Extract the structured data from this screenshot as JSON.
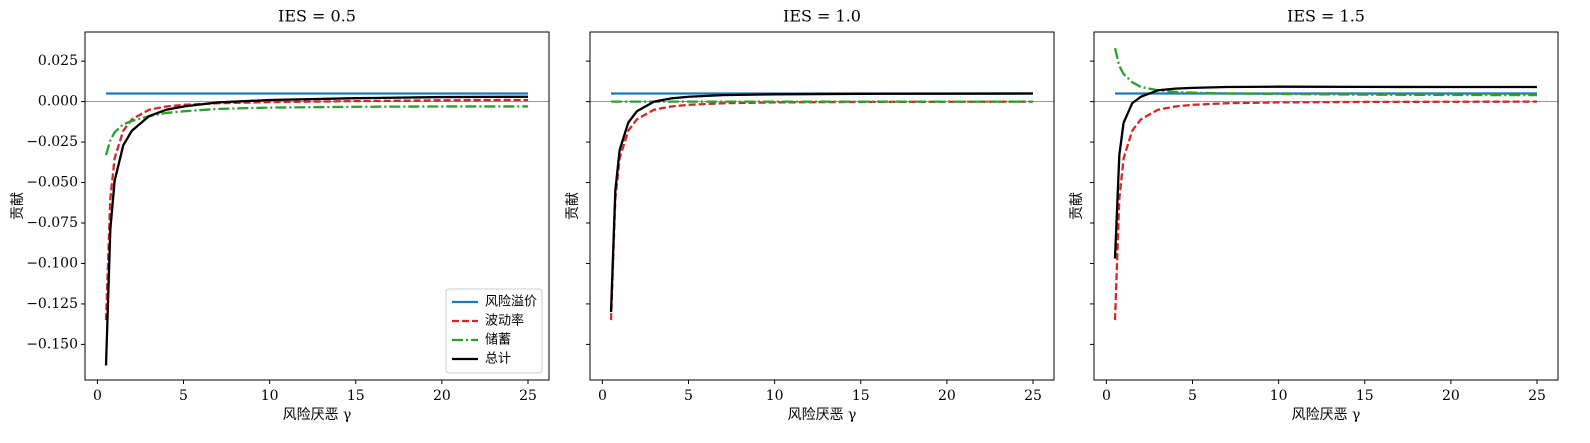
{
  "chart_data": [
    {
      "type": "line",
      "title": "IES = 0.5",
      "xlabel": "风险厌恶 γ",
      "ylabel": "贡献",
      "x": [
        0.5,
        0.75,
        1,
        1.5,
        2,
        3,
        4,
        5,
        7,
        10,
        15,
        20,
        25
      ],
      "series": [
        {
          "name": "风险溢价",
          "color": "#1f77b4",
          "dash": "solid",
          "values": [
            0.005,
            0.005,
            0.005,
            0.005,
            0.005,
            0.005,
            0.005,
            0.005,
            0.005,
            0.005,
            0.005,
            0.005,
            0.005
          ]
        },
        {
          "name": "波动率",
          "color": "#d62728",
          "dash": "dashed",
          "values": [
            -0.135,
            -0.06,
            -0.035,
            -0.018,
            -0.011,
            -0.005,
            -0.003,
            -0.002,
            -0.001,
            -0.0003,
            0.0003,
            0.0008,
            0.001
          ]
        },
        {
          "name": "储蓄",
          "color": "#2ca02c",
          "dash": "dashdot",
          "values": [
            -0.033,
            -0.024,
            -0.019,
            -0.014,
            -0.012,
            -0.009,
            -0.007,
            -0.006,
            -0.0045,
            -0.0037,
            -0.0032,
            -0.003,
            -0.003
          ]
        },
        {
          "name": "总计",
          "color": "#000000",
          "dash": "solid",
          "values": [
            -0.163,
            -0.079,
            -0.049,
            -0.027,
            -0.018,
            -0.009,
            -0.005,
            -0.003,
            -0.0005,
            0.001,
            0.0021,
            0.0028,
            0.003
          ]
        }
      ],
      "xlim": [
        -0.72,
        26.22
      ],
      "xticks": [
        0,
        5,
        10,
        15,
        20,
        25
      ],
      "ylim": [
        -0.172,
        0.043
      ],
      "yticks": [
        {
          "value": -0.15,
          "label": "−0.150"
        },
        {
          "value": -0.125,
          "label": "−0.125"
        },
        {
          "value": -0.1,
          "label": "−0.100"
        },
        {
          "value": -0.075,
          "label": "−0.075"
        },
        {
          "value": -0.05,
          "label": "−0.050"
        },
        {
          "value": -0.025,
          "label": "−0.025"
        },
        {
          "value": 0,
          "label": "0.000"
        },
        {
          "value": 0.025,
          "label": "0.025"
        }
      ],
      "hline": 0,
      "legend": "lower right"
    },
    {
      "type": "line",
      "title": "IES = 1.0",
      "xlabel": "风险厌恶 γ",
      "ylabel": "贡献",
      "x": [
        0.5,
        0.75,
        1,
        1.5,
        2,
        3,
        4,
        5,
        7,
        10,
        15,
        20,
        25
      ],
      "series": [
        {
          "name": "风险溢价",
          "color": "#1f77b4",
          "dash": "solid",
          "values": [
            0.005,
            0.005,
            0.005,
            0.005,
            0.005,
            0.005,
            0.005,
            0.005,
            0.005,
            0.005,
            0.005,
            0.005,
            0.005
          ]
        },
        {
          "name": "波动率",
          "color": "#d62728",
          "dash": "dashed",
          "values": [
            -0.135,
            -0.06,
            -0.035,
            -0.018,
            -0.011,
            -0.005,
            -0.003,
            -0.002,
            -0.001,
            -0.0005,
            -0.0002,
            -0.0001,
            0
          ]
        },
        {
          "name": "储蓄",
          "color": "#2ca02c",
          "dash": "dashdot",
          "values": [
            0,
            0,
            0,
            0,
            0,
            0,
            0,
            0,
            0,
            0,
            0,
            0,
            0
          ]
        },
        {
          "name": "总计",
          "color": "#000000",
          "dash": "solid",
          "values": [
            -0.13,
            -0.055,
            -0.03,
            -0.013,
            -0.006,
            0,
            0.002,
            0.003,
            0.004,
            0.0045,
            0.0048,
            0.0049,
            0.005
          ]
        }
      ],
      "xlim": [
        -0.72,
        26.22
      ],
      "xticks": [
        0,
        5,
        10,
        15,
        20,
        25
      ],
      "ylim": [
        -0.172,
        0.043
      ],
      "yticks": [
        -0.15,
        -0.125,
        -0.1,
        -0.075,
        -0.05,
        -0.025,
        0,
        0.025
      ],
      "hline": 0
    },
    {
      "type": "line",
      "title": "IES = 1.5",
      "xlabel": "风险厌恶 γ",
      "ylabel": "贡献",
      "x": [
        0.5,
        0.75,
        1,
        1.5,
        2,
        3,
        4,
        5,
        7,
        10,
        15,
        20,
        25
      ],
      "series": [
        {
          "name": "风险溢价",
          "color": "#1f77b4",
          "dash": "solid",
          "values": [
            0.005,
            0.005,
            0.005,
            0.005,
            0.005,
            0.005,
            0.005,
            0.005,
            0.005,
            0.005,
            0.005,
            0.005,
            0.005
          ]
        },
        {
          "name": "波动率",
          "color": "#d62728",
          "dash": "dashed",
          "values": [
            -0.135,
            -0.06,
            -0.035,
            -0.018,
            -0.011,
            -0.005,
            -0.003,
            -0.002,
            -0.001,
            -0.0005,
            -0.0002,
            -0.0001,
            0
          ]
        },
        {
          "name": "储蓄",
          "color": "#2ca02c",
          "dash": "dashdot",
          "values": [
            0.033,
            0.022,
            0.017,
            0.012,
            0.009,
            0.007,
            0.006,
            0.0055,
            0.005,
            0.0047,
            0.0043,
            0.0041,
            0.004
          ]
        },
        {
          "name": "总计",
          "color": "#000000",
          "dash": "solid",
          "values": [
            -0.097,
            -0.033,
            -0.013,
            -0.001,
            0.003,
            0.007,
            0.008,
            0.0085,
            0.009,
            0.0092,
            0.0091,
            0.009,
            0.009
          ]
        }
      ],
      "xlim": [
        -0.72,
        26.22
      ],
      "xticks": [
        0,
        5,
        10,
        15,
        20,
        25
      ],
      "ylim": [
        -0.172,
        0.043
      ],
      "yticks": [
        -0.15,
        -0.125,
        -0.1,
        -0.075,
        -0.05,
        -0.025,
        0,
        0.025
      ],
      "hline": 0
    }
  ]
}
